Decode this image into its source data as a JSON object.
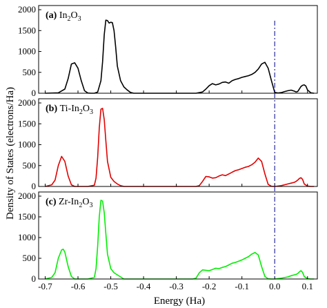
{
  "chart_data": {
    "type": "line",
    "xlabel": "Energy (Ha)",
    "ylabel": "Density of States (electrons/Ha)",
    "xlim": [
      -0.72,
      0.13
    ],
    "x_ticks": [
      -0.7,
      -0.6,
      -0.5,
      -0.4,
      -0.3,
      -0.2,
      -0.1,
      0.0,
      0.1
    ],
    "x_tick_labels": [
      "-0.7",
      "-0.6",
      "-0.5",
      "-0.4",
      "-0.3",
      "-0.2",
      "-0.1",
      "0.0",
      "0.1"
    ],
    "fermi_level": 0.0,
    "fermi_line_color": "#2a2a9a",
    "panels": [
      {
        "label": "(a)",
        "name": "In2O3",
        "name_main": "In",
        "name_sub1": "2",
        "name_mid": "O",
        "name_sub2": "3",
        "prefix": "",
        "color": "#000000",
        "ylim": [
          0,
          2100
        ],
        "y_ticks": [
          0,
          500,
          1000,
          1500,
          2000
        ],
        "y_tick_labels": [
          "0",
          "500",
          "1000",
          "1500",
          "2000"
        ],
        "x": [
          -0.7,
          -0.66,
          -0.64,
          -0.63,
          -0.62,
          -0.61,
          -0.6,
          -0.59,
          -0.58,
          -0.57,
          -0.56,
          -0.55,
          -0.54,
          -0.53,
          -0.525,
          -0.52,
          -0.515,
          -0.51,
          -0.505,
          -0.5,
          -0.495,
          -0.49,
          -0.485,
          -0.48,
          -0.47,
          -0.46,
          -0.45,
          -0.44,
          -0.43,
          -0.4,
          -0.3,
          -0.24,
          -0.22,
          -0.21,
          -0.2,
          -0.19,
          -0.18,
          -0.17,
          -0.16,
          -0.15,
          -0.14,
          -0.13,
          -0.12,
          -0.11,
          -0.1,
          -0.09,
          -0.08,
          -0.07,
          -0.06,
          -0.05,
          -0.04,
          -0.03,
          -0.02,
          -0.01,
          0.0,
          0.01,
          0.02,
          0.03,
          0.04,
          0.05,
          0.06,
          0.065,
          0.07,
          0.075,
          0.08,
          0.085,
          0.09,
          0.095,
          0.1,
          0.11,
          0.12
        ],
        "values": [
          0,
          10,
          100,
          350,
          700,
          730,
          600,
          300,
          60,
          5,
          0,
          0,
          30,
          300,
          750,
          1400,
          1750,
          1740,
          1680,
          1700,
          1690,
          1500,
          1100,
          650,
          300,
          150,
          80,
          20,
          0,
          0,
          0,
          0,
          30,
          100,
          180,
          230,
          200,
          220,
          260,
          270,
          240,
          300,
          330,
          350,
          380,
          400,
          420,
          450,
          500,
          580,
          700,
          740,
          600,
          300,
          20,
          5,
          15,
          40,
          60,
          75,
          50,
          30,
          40,
          100,
          160,
          190,
          200,
          170,
          80,
          10,
          0
        ]
      },
      {
        "label": "(b)",
        "name": "Ti-In2O3",
        "name_main": "In",
        "name_sub1": "2",
        "name_mid": "O",
        "name_sub2": "3",
        "prefix": "Ti-",
        "color": "#e00000",
        "ylim": [
          0,
          2100
        ],
        "y_ticks": [
          0,
          500,
          1000,
          1500,
          2000
        ],
        "y_tick_labels": [
          "0",
          "500",
          "1000",
          "1500",
          "2000"
        ],
        "x": [
          -0.7,
          -0.68,
          -0.67,
          -0.66,
          -0.65,
          -0.64,
          -0.63,
          -0.62,
          -0.61,
          -0.6,
          -0.57,
          -0.55,
          -0.545,
          -0.54,
          -0.535,
          -0.53,
          -0.525,
          -0.52,
          -0.515,
          -0.51,
          -0.5,
          -0.49,
          -0.48,
          -0.47,
          -0.46,
          -0.4,
          -0.3,
          -0.24,
          -0.23,
          -0.22,
          -0.21,
          -0.2,
          -0.19,
          -0.18,
          -0.17,
          -0.16,
          -0.15,
          -0.14,
          -0.13,
          -0.12,
          -0.11,
          -0.1,
          -0.09,
          -0.08,
          -0.07,
          -0.06,
          -0.05,
          -0.04,
          -0.03,
          -0.02,
          -0.01,
          0.0,
          0.02,
          0.04,
          0.05,
          0.06,
          0.065,
          0.07,
          0.075,
          0.08,
          0.085,
          0.09,
          0.1,
          0.11,
          0.12
        ],
        "values": [
          0,
          40,
          150,
          500,
          720,
          600,
          250,
          40,
          0,
          0,
          0,
          30,
          200,
          700,
          1400,
          1850,
          1870,
          1600,
          1100,
          600,
          220,
          120,
          60,
          20,
          0,
          0,
          0,
          0,
          20,
          120,
          240,
          230,
          200,
          210,
          250,
          280,
          260,
          300,
          340,
          380,
          400,
          430,
          460,
          480,
          520,
          580,
          680,
          600,
          300,
          50,
          5,
          0,
          20,
          60,
          80,
          100,
          120,
          150,
          190,
          210,
          170,
          60,
          10,
          0,
          0
        ]
      },
      {
        "label": "(c)",
        "name": "Zr-In2O3",
        "name_main": "In",
        "name_sub1": "2",
        "name_mid": "O",
        "name_sub2": "3",
        "prefix": "Zr-",
        "color": "#00ee00",
        "ylim": [
          0,
          2100
        ],
        "y_ticks": [
          0,
          500,
          1000,
          1500,
          2000
        ],
        "y_tick_labels": [
          "0",
          "500",
          "1000",
          "1500",
          "2000"
        ],
        "x": [
          -0.7,
          -0.68,
          -0.67,
          -0.66,
          -0.65,
          -0.645,
          -0.64,
          -0.63,
          -0.62,
          -0.61,
          -0.6,
          -0.57,
          -0.55,
          -0.545,
          -0.54,
          -0.535,
          -0.53,
          -0.525,
          -0.52,
          -0.515,
          -0.51,
          -0.5,
          -0.49,
          -0.48,
          -0.47,
          -0.46,
          -0.4,
          -0.3,
          -0.25,
          -0.24,
          -0.23,
          -0.22,
          -0.21,
          -0.2,
          -0.19,
          -0.18,
          -0.17,
          -0.16,
          -0.15,
          -0.14,
          -0.13,
          -0.12,
          -0.11,
          -0.1,
          -0.09,
          -0.08,
          -0.07,
          -0.06,
          -0.05,
          -0.04,
          -0.03,
          -0.02,
          -0.01,
          0.0,
          0.02,
          0.04,
          0.05,
          0.06,
          0.065,
          0.07,
          0.075,
          0.08,
          0.085,
          0.09,
          0.1,
          0.11,
          0.12
        ],
        "values": [
          0,
          40,
          150,
          500,
          700,
          720,
          650,
          300,
          60,
          0,
          0,
          0,
          40,
          250,
          800,
          1500,
          1900,
          1880,
          1600,
          1100,
          600,
          250,
          150,
          100,
          50,
          0,
          0,
          0,
          0,
          20,
          150,
          220,
          210,
          200,
          230,
          260,
          250,
          280,
          300,
          340,
          380,
          400,
          430,
          460,
          500,
          540,
          600,
          640,
          580,
          300,
          60,
          5,
          0,
          0,
          20,
          50,
          80,
          100,
          110,
          130,
          170,
          200,
          160,
          60,
          10,
          0,
          0
        ]
      }
    ]
  }
}
